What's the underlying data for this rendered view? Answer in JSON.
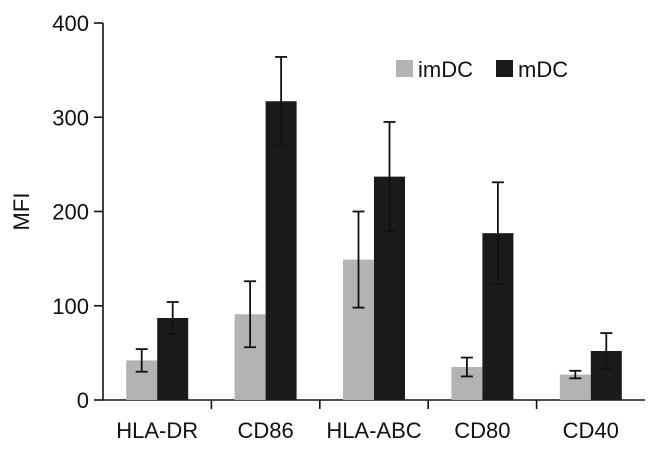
{
  "chart_data": {
    "type": "bar",
    "title": "",
    "xlabel": "",
    "ylabel": "MFI",
    "ylim": [
      0,
      400
    ],
    "yticks": [
      0,
      100,
      200,
      300,
      400
    ],
    "categories": [
      "HLA-DR",
      "CD86",
      "HLA-ABC",
      "CD80",
      "CD40"
    ],
    "series": [
      {
        "name": "imDC",
        "color": "#b3b3b3",
        "values": [
          42,
          91,
          149,
          35,
          27
        ],
        "error": [
          12,
          35,
          51,
          10,
          4
        ]
      },
      {
        "name": "mDC",
        "color": "#1a1a1a",
        "values": [
          87,
          317,
          237,
          177,
          52
        ],
        "error": [
          17,
          47,
          58,
          54,
          19
        ]
      }
    ],
    "legend": {
      "placement": "top-right",
      "entries": [
        "imDC",
        "mDC"
      ]
    },
    "grid": false
  }
}
